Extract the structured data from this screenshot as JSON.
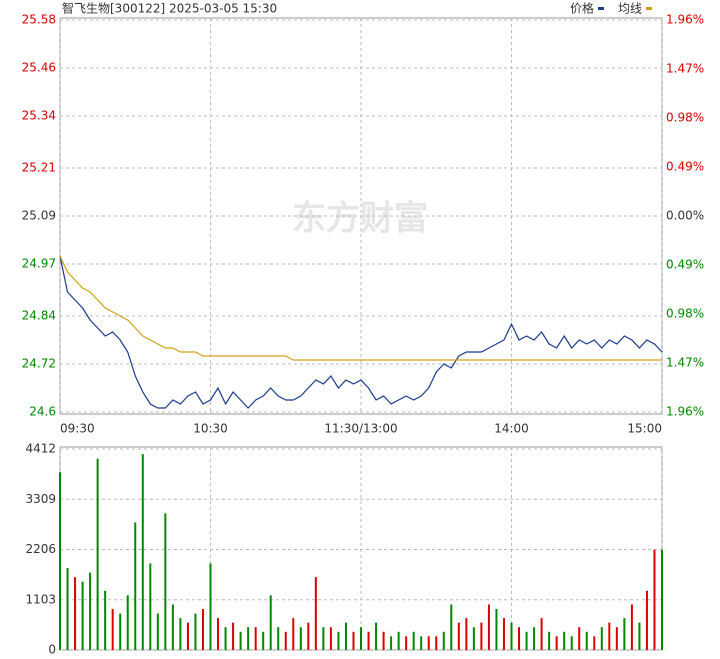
{
  "chart_data": [
    {
      "type": "line",
      "title": "智飞生物[300122] 2025-03-05 15:30",
      "watermark": "东方财富",
      "x": [
        0,
        3,
        6,
        9,
        12,
        15,
        18,
        21,
        24,
        27,
        30,
        33,
        36,
        39,
        42,
        45,
        48,
        51,
        54,
        57,
        60,
        63,
        66,
        69,
        72,
        75,
        78,
        81,
        84,
        87,
        90,
        93,
        96,
        99,
        102,
        105,
        108,
        111,
        114,
        117,
        120,
        123,
        126,
        129,
        132,
        135,
        138,
        141,
        144,
        147,
        150,
        153,
        156,
        159,
        162,
        165,
        168,
        171,
        174,
        177,
        180,
        183,
        186,
        189,
        192,
        195,
        198,
        201,
        204,
        207,
        210,
        213,
        216,
        219,
        222,
        225,
        228,
        231,
        234,
        237,
        240
      ],
      "series": [
        {
          "name": "价格",
          "color": "#1a3a8c",
          "values": [
            24.99,
            24.9,
            24.88,
            24.86,
            24.83,
            24.81,
            24.79,
            24.8,
            24.78,
            24.75,
            24.69,
            24.65,
            24.62,
            24.61,
            24.61,
            24.63,
            24.62,
            24.64,
            24.65,
            24.62,
            24.63,
            24.66,
            24.62,
            24.65,
            24.63,
            24.61,
            24.63,
            24.64,
            24.66,
            24.64,
            24.63,
            24.63,
            24.64,
            24.66,
            24.68,
            24.67,
            24.69,
            24.66,
            24.68,
            24.67,
            24.68,
            24.66,
            24.63,
            24.64,
            24.62,
            24.63,
            24.64,
            24.63,
            24.64,
            24.66,
            24.7,
            24.72,
            24.71,
            24.74,
            24.75,
            24.75,
            24.75,
            24.76,
            24.77,
            24.78,
            24.82,
            24.78,
            24.79,
            24.78,
            24.8,
            24.77,
            24.76,
            24.79,
            24.76,
            24.78,
            24.77,
            24.78,
            24.76,
            24.78,
            24.77,
            24.79,
            24.78,
            24.76,
            24.78,
            24.77,
            24.75
          ]
        },
        {
          "name": "均线",
          "color": "#d4a017",
          "values": [
            24.99,
            24.95,
            24.93,
            24.91,
            24.9,
            24.88,
            24.86,
            24.85,
            24.84,
            24.83,
            24.81,
            24.79,
            24.78,
            24.77,
            24.76,
            24.76,
            24.75,
            24.75,
            24.75,
            24.74,
            24.74,
            24.74,
            24.74,
            24.74,
            24.74,
            24.74,
            24.74,
            24.74,
            24.74,
            24.74,
            24.74,
            24.73,
            24.73,
            24.73,
            24.73,
            24.73,
            24.73,
            24.73,
            24.73,
            24.73,
            24.73,
            24.73,
            24.73,
            24.73,
            24.73,
            24.73,
            24.73,
            24.73,
            24.73,
            24.73,
            24.73,
            24.73,
            24.73,
            24.73,
            24.73,
            24.73,
            24.73,
            24.73,
            24.73,
            24.73,
            24.73,
            24.73,
            24.73,
            24.73,
            24.73,
            24.73,
            24.73,
            24.73,
            24.73,
            24.73,
            24.73,
            24.73,
            24.73,
            24.73,
            24.73,
            24.73,
            24.73,
            24.73,
            24.73,
            24.73,
            24.73
          ]
        }
      ],
      "xlim": [
        0,
        240
      ],
      "xticks": [
        {
          "value": 0,
          "label": "09:30"
        },
        {
          "value": 60,
          "label": "10:30"
        },
        {
          "value": 120,
          "label": "11:30/13:00"
        },
        {
          "value": 180,
          "label": "14:00"
        },
        {
          "value": 240,
          "label": "15:00"
        }
      ],
      "ylim": [
        24.6,
        25.58
      ],
      "yticks": [
        25.58,
        25.46,
        25.34,
        25.21,
        25.09,
        24.97,
        24.84,
        24.72,
        24.6
      ],
      "y2lim": [
        -1.96,
        1.96
      ],
      "y2ticks": [
        {
          "value": 1.96,
          "label": "1.96%"
        },
        {
          "value": 1.47,
          "label": "1.47%"
        },
        {
          "value": 0.98,
          "label": "0.98%"
        },
        {
          "value": 0.49,
          "label": "0.49%"
        },
        {
          "value": 0,
          "label": "0.00%"
        },
        {
          "value": -0.49,
          "label": "0.49%"
        },
        {
          "value": -0.98,
          "label": "0.98%"
        },
        {
          "value": -1.47,
          "label": "1.47%"
        },
        {
          "value": -1.96,
          "label": "1.96%"
        }
      ],
      "grid": true
    },
    {
      "type": "bar",
      "values": [
        3900,
        1800,
        1600,
        1500,
        1700,
        4200,
        1300,
        900,
        800,
        1200,
        2800,
        4300,
        1900,
        800,
        3000,
        1000,
        700,
        600,
        800,
        900,
        1900,
        700,
        500,
        600,
        400,
        500,
        500,
        400,
        1200,
        500,
        400,
        700,
        500,
        600,
        1600,
        500,
        500,
        400,
        600,
        400,
        500,
        400,
        600,
        400,
        300,
        400,
        300,
        400,
        300,
        300,
        300,
        400,
        1000,
        600,
        700,
        500,
        600,
        1000,
        900,
        700,
        600,
        500,
        400,
        500,
        700,
        400,
        300,
        400,
        300,
        500,
        400,
        300,
        500,
        600,
        500,
        700,
        1000,
        600,
        1300,
        2200,
        2200
      ],
      "colors": [
        "#080",
        "#080",
        "#d00",
        "#080",
        "#080",
        "#080",
        "#080",
        "#d00",
        "#080",
        "#080",
        "#080",
        "#080",
        "#080",
        "#080",
        "#080",
        "#080",
        "#080",
        "#d00",
        "#080",
        "#d00",
        "#080",
        "#d00",
        "#080",
        "#d00",
        "#080",
        "#080",
        "#d00",
        "#080",
        "#080",
        "#080",
        "#d00",
        "#d00",
        "#080",
        "#d00",
        "#d00",
        "#080",
        "#d00",
        "#080",
        "#080",
        "#d00",
        "#080",
        "#d00",
        "#080",
        "#d00",
        "#080",
        "#080",
        "#d00",
        "#080",
        "#080",
        "#d00",
        "#d00",
        "#080",
        "#080",
        "#d00",
        "#d00",
        "#080",
        "#d00",
        "#d00",
        "#080",
        "#d00",
        "#080",
        "#d00",
        "#080",
        "#080",
        "#d00",
        "#080",
        "#d00",
        "#080",
        "#080",
        "#d00",
        "#080",
        "#d00",
        "#080",
        "#d00",
        "#d00",
        "#080",
        "#d00",
        "#080",
        "#d00",
        "#d00",
        "#080"
      ],
      "ylim": [
        0,
        4412
      ],
      "yticks": [
        0,
        1103,
        2206,
        3309,
        4412
      ],
      "grid": true
    }
  ]
}
